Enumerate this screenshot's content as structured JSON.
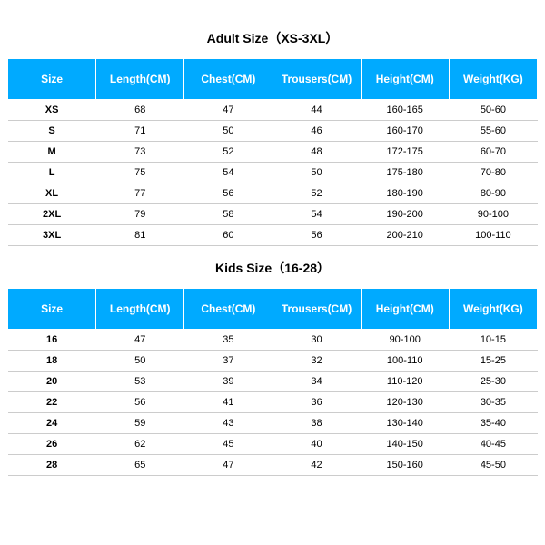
{
  "colors": {
    "header_bg": "#00aaff",
    "header_fg": "#ffffff",
    "border": "#cccccc",
    "text": "#000000",
    "bg": "#ffffff"
  },
  "adult": {
    "title": "Adult Size（XS-3XL）",
    "columns": [
      "Size",
      "Length(CM)",
      "Chest(CM)",
      "Trousers(CM)",
      "Height(CM)",
      "Weight(KG)"
    ],
    "rows": [
      [
        "XS",
        "68",
        "47",
        "44",
        "160-165",
        "50-60"
      ],
      [
        "S",
        "71",
        "50",
        "46",
        "160-170",
        "55-60"
      ],
      [
        "M",
        "73",
        "52",
        "48",
        "172-175",
        "60-70"
      ],
      [
        "L",
        "75",
        "54",
        "50",
        "175-180",
        "70-80"
      ],
      [
        "XL",
        "77",
        "56",
        "52",
        "180-190",
        "80-90"
      ],
      [
        "2XL",
        "79",
        "58",
        "54",
        "190-200",
        "90-100"
      ],
      [
        "3XL",
        "81",
        "60",
        "56",
        "200-210",
        "100-110"
      ]
    ]
  },
  "kids": {
    "title": "Kids Size（16-28）",
    "columns": [
      "Size",
      "Length(CM)",
      "Chest(CM)",
      "Trousers(CM)",
      "Height(CM)",
      "Weight(KG)"
    ],
    "rows": [
      [
        "16",
        "47",
        "35",
        "30",
        "90-100",
        "10-15"
      ],
      [
        "18",
        "50",
        "37",
        "32",
        "100-110",
        "15-25"
      ],
      [
        "20",
        "53",
        "39",
        "34",
        "110-120",
        "25-30"
      ],
      [
        "22",
        "56",
        "41",
        "36",
        "120-130",
        "30-35"
      ],
      [
        "24",
        "59",
        "43",
        "38",
        "130-140",
        "35-40"
      ],
      [
        "26",
        "62",
        "45",
        "40",
        "140-150",
        "40-45"
      ],
      [
        "28",
        "65",
        "47",
        "42",
        "150-160",
        "45-50"
      ]
    ]
  }
}
